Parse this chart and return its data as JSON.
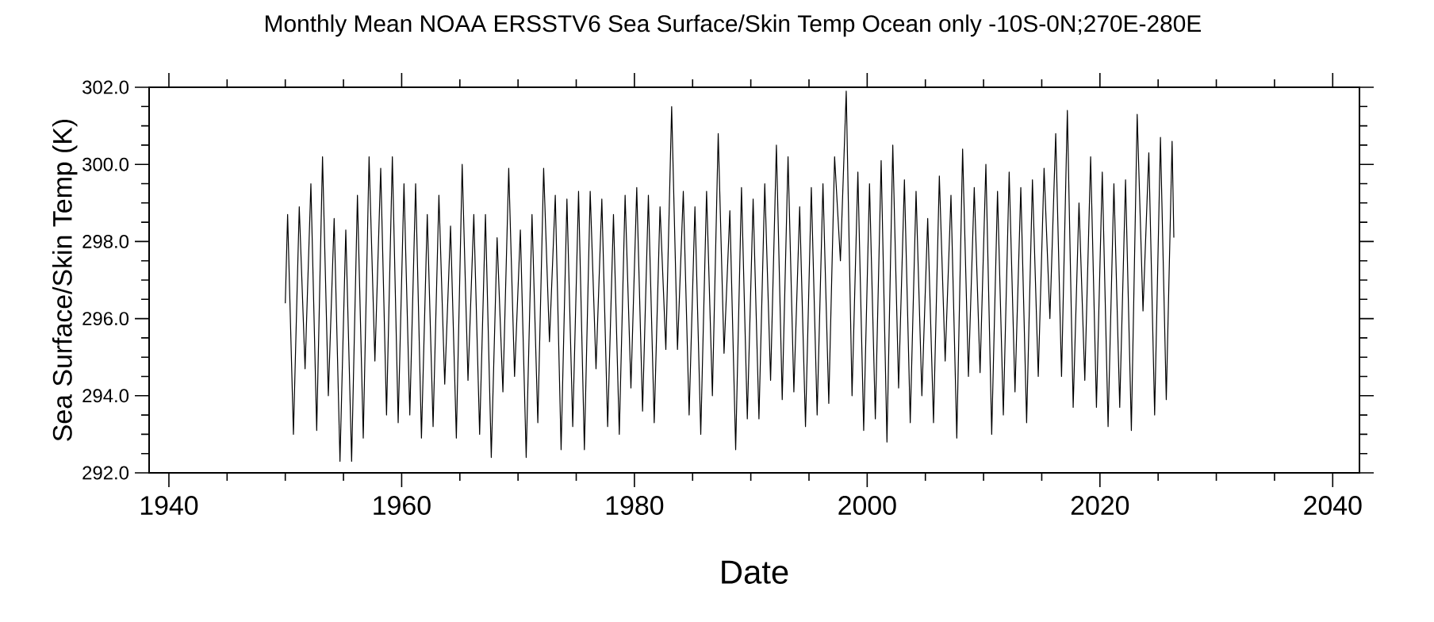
{
  "chart_data": {
    "type": "line",
    "title": "Monthly Mean NOAA ERSSTV6   Sea Surface/Skin Temp Ocean only -10S-0N;270E-280E",
    "xlabel": "Date",
    "ylabel": "Sea Surface/Skin Temp (K)",
    "x": [
      1950.0,
      1950.2,
      1950.7,
      1951.2,
      1951.7,
      1952.2,
      1952.7,
      1953.2,
      1953.7,
      1954.2,
      1954.7,
      1955.2,
      1955.7,
      1956.2,
      1956.7,
      1957.2,
      1957.7,
      1958.2,
      1958.7,
      1959.2,
      1959.7,
      1960.2,
      1960.7,
      1961.2,
      1961.7,
      1962.2,
      1962.7,
      1963.2,
      1963.7,
      1964.2,
      1964.7,
      1965.2,
      1965.7,
      1966.2,
      1966.7,
      1967.2,
      1967.7,
      1968.2,
      1968.7,
      1969.2,
      1969.7,
      1970.2,
      1970.7,
      1971.2,
      1971.7,
      1972.2,
      1972.7,
      1973.2,
      1973.7,
      1974.2,
      1974.7,
      1975.2,
      1975.7,
      1976.2,
      1976.7,
      1977.2,
      1977.7,
      1978.2,
      1978.7,
      1979.2,
      1979.7,
      1980.2,
      1980.7,
      1981.2,
      1981.7,
      1982.2,
      1982.7,
      1983.2,
      1983.7,
      1984.2,
      1984.7,
      1985.2,
      1985.7,
      1986.2,
      1986.7,
      1987.2,
      1987.7,
      1988.2,
      1988.7,
      1989.2,
      1989.7,
      1990.2,
      1990.7,
      1991.2,
      1991.7,
      1992.2,
      1992.7,
      1993.2,
      1993.7,
      1994.2,
      1994.7,
      1995.2,
      1995.7,
      1996.2,
      1996.7,
      1997.2,
      1997.7,
      1998.2,
      1998.7,
      1999.2,
      1999.7,
      2000.2,
      2000.7,
      2001.2,
      2001.7,
      2002.2,
      2002.7,
      2003.2,
      2003.7,
      2004.2,
      2004.7,
      2005.2,
      2005.7,
      2006.2,
      2006.7,
      2007.2,
      2007.7,
      2008.2,
      2008.7,
      2009.2,
      2009.7,
      2010.2,
      2010.7,
      2011.2,
      2011.7,
      2012.2,
      2012.7,
      2013.2,
      2013.7,
      2014.2,
      2014.7,
      2015.2,
      2015.7,
      2016.2,
      2016.7,
      2017.2,
      2017.7,
      2018.2,
      2018.7,
      2019.2,
      2019.7,
      2020.2,
      2020.7,
      2021.2,
      2021.7,
      2022.2,
      2022.7,
      2023.2,
      2023.7,
      2024.2,
      2024.7,
      2025.2,
      2025.7,
      2026.2,
      2026.35
    ],
    "values": [
      296.4,
      298.7,
      293.0,
      298.9,
      294.7,
      299.5,
      293.1,
      300.2,
      294.0,
      298.6,
      292.3,
      298.3,
      292.3,
      299.2,
      292.9,
      300.2,
      294.9,
      299.9,
      293.5,
      300.2,
      293.3,
      299.5,
      293.5,
      299.5,
      292.9,
      298.7,
      293.2,
      299.2,
      294.3,
      298.4,
      292.9,
      300.0,
      294.4,
      298.7,
      293.0,
      298.7,
      292.4,
      298.1,
      294.1,
      299.9,
      294.5,
      298.3,
      292.4,
      298.7,
      293.3,
      299.9,
      295.4,
      299.2,
      292.6,
      299.1,
      293.2,
      299.3,
      292.6,
      299.3,
      294.7,
      299.1,
      293.2,
      298.7,
      293.0,
      299.2,
      294.2,
      299.4,
      293.6,
      299.2,
      293.3,
      298.9,
      295.2,
      301.5,
      295.2,
      299.3,
      293.5,
      298.9,
      293.0,
      299.3,
      294.0,
      300.8,
      295.1,
      298.8,
      292.6,
      299.4,
      293.4,
      299.1,
      293.4,
      299.5,
      294.4,
      300.5,
      293.9,
      300.2,
      294.1,
      298.9,
      293.2,
      299.4,
      293.5,
      299.5,
      293.8,
      300.2,
      297.5,
      301.9,
      294.0,
      299.8,
      293.1,
      299.5,
      293.4,
      300.1,
      292.8,
      300.5,
      294.2,
      299.6,
      293.3,
      299.3,
      294.0,
      298.6,
      293.3,
      299.7,
      294.9,
      299.2,
      292.9,
      300.4,
      294.5,
      299.4,
      294.6,
      300.0,
      293.0,
      299.3,
      293.5,
      299.8,
      294.1,
      299.4,
      293.3,
      299.6,
      294.5,
      299.9,
      296.0,
      300.8,
      294.5,
      301.4,
      293.7,
      299.0,
      294.4,
      300.2,
      293.7,
      299.8,
      293.2,
      299.5,
      293.7,
      299.6,
      293.1,
      301.3,
      296.2,
      300.3,
      293.5,
      300.7,
      293.9,
      300.6,
      298.1
    ],
    "color": "#000000",
    "line_style": "solid",
    "xlim": [
      1938.3,
      2042.3
    ],
    "ylim": [
      292,
      302
    ],
    "xticks": [
      1940,
      1960,
      1980,
      2000,
      2020,
      2040
    ],
    "yticks": [
      {
        "value": 292,
        "label": "292.0"
      },
      {
        "value": 294,
        "label": "294.0"
      },
      {
        "value": 296,
        "label": "296.0"
      },
      {
        "value": 298,
        "label": "298.0"
      },
      {
        "value": 300,
        "label": "300.0"
      },
      {
        "value": 302,
        "label": "302.0"
      }
    ]
  }
}
